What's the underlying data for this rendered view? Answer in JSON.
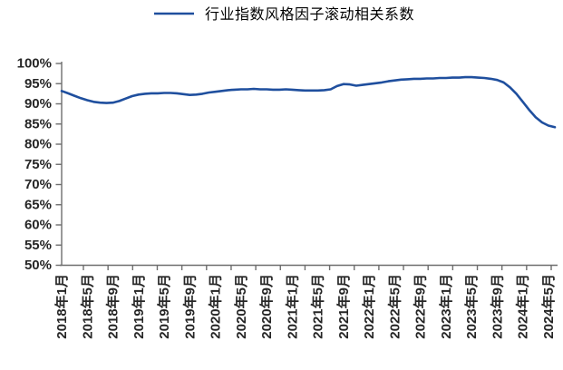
{
  "legend": {
    "label": "行业指数风格因子滚动相关系数"
  },
  "colors": {
    "line": "#1F4F9E",
    "axis": "#6e6e6e",
    "tick_label": "#262626",
    "background": "#ffffff"
  },
  "chart_data": {
    "type": "line",
    "title": "",
    "legend_entries": [
      "行业指数风格因子滚动相关系数"
    ],
    "legend_position": "top-center",
    "grid": false,
    "ylim": [
      50,
      100
    ],
    "y_unit": "%",
    "y_tick_labels": [
      "100%",
      "95%",
      "90%",
      "85%",
      "80%",
      "75%",
      "70%",
      "65%",
      "60%",
      "55%",
      "50%"
    ],
    "x_tick_labels": [
      "2018年1月",
      "2018年5月",
      "2018年9月",
      "2019年1月",
      "2019年5月",
      "2019年9月",
      "2020年1月",
      "2020年5月",
      "2020年9月",
      "2021年1月",
      "2021年5月",
      "2021年9月",
      "2022年1月",
      "2022年5月",
      "2022年9月",
      "2023年1月",
      "2023年5月",
      "2023年9月",
      "2024年1月",
      "2024年5月"
    ],
    "x": [
      "2018-01",
      "2018-02",
      "2018-03",
      "2018-04",
      "2018-05",
      "2018-06",
      "2018-07",
      "2018-08",
      "2018-09",
      "2018-10",
      "2018-11",
      "2018-12",
      "2019-01",
      "2019-02",
      "2019-03",
      "2019-04",
      "2019-05",
      "2019-06",
      "2019-07",
      "2019-08",
      "2019-09",
      "2019-10",
      "2019-11",
      "2019-12",
      "2020-01",
      "2020-02",
      "2020-03",
      "2020-04",
      "2020-05",
      "2020-06",
      "2020-07",
      "2020-08",
      "2020-09",
      "2020-10",
      "2020-11",
      "2020-12",
      "2021-01",
      "2021-02",
      "2021-03",
      "2021-04",
      "2021-05",
      "2021-06",
      "2021-07",
      "2021-08",
      "2021-09",
      "2021-10",
      "2021-11",
      "2021-12",
      "2022-01",
      "2022-02",
      "2022-03",
      "2022-04",
      "2022-05",
      "2022-06",
      "2022-07",
      "2022-08",
      "2022-09",
      "2022-10",
      "2022-11",
      "2022-12",
      "2023-01",
      "2023-02",
      "2023-03",
      "2023-04",
      "2023-05",
      "2023-06",
      "2023-07",
      "2023-08",
      "2023-09",
      "2023-10",
      "2023-11",
      "2023-12",
      "2024-01",
      "2024-02",
      "2024-03",
      "2024-04",
      "2024-05",
      "2024-06"
    ],
    "values": [
      93.2,
      92.6,
      92.0,
      91.4,
      90.9,
      90.5,
      90.3,
      90.2,
      90.3,
      90.7,
      91.3,
      91.9,
      92.3,
      92.5,
      92.6,
      92.6,
      92.7,
      92.7,
      92.6,
      92.4,
      92.2,
      92.3,
      92.5,
      92.8,
      93.0,
      93.2,
      93.4,
      93.5,
      93.6,
      93.6,
      93.7,
      93.6,
      93.6,
      93.5,
      93.5,
      93.6,
      93.5,
      93.4,
      93.3,
      93.3,
      93.3,
      93.4,
      93.6,
      94.4,
      94.9,
      94.8,
      94.5,
      94.7,
      94.9,
      95.1,
      95.3,
      95.6,
      95.8,
      96.0,
      96.1,
      96.2,
      96.2,
      96.3,
      96.3,
      96.4,
      96.4,
      96.5,
      96.5,
      96.6,
      96.6,
      96.5,
      96.4,
      96.2,
      95.9,
      95.3,
      94.1,
      92.5,
      90.5,
      88.5,
      86.7,
      85.4,
      84.6,
      84.2
    ]
  }
}
